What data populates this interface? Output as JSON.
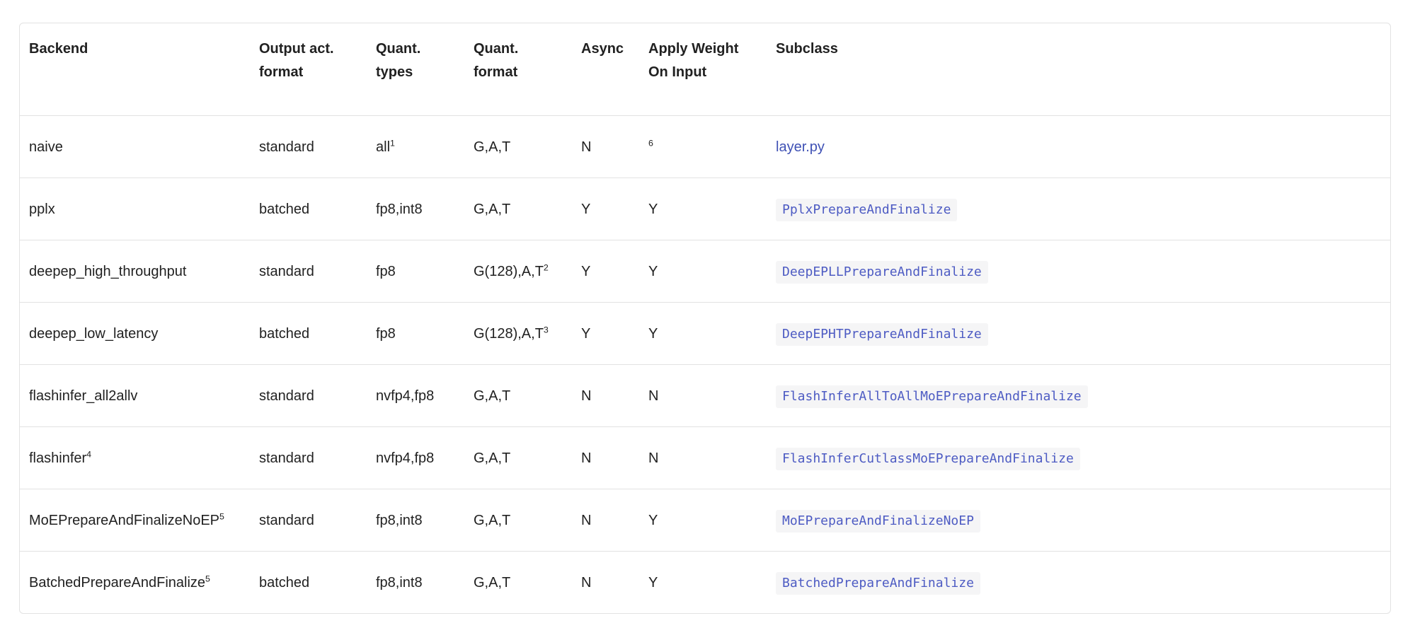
{
  "colors": {
    "link": "#3f51b5",
    "code_text": "#4d5bc3",
    "code_bg": "#f5f5f6",
    "border": "#e2e2e2",
    "text": "#212121"
  },
  "table": {
    "columns": [
      {
        "key": "backend",
        "label": "Backend"
      },
      {
        "key": "output-act-format",
        "label": "Output act. format"
      },
      {
        "key": "quant-types",
        "label": "Quant. types"
      },
      {
        "key": "quant-format",
        "label": "Quant. format"
      },
      {
        "key": "async",
        "label": "Async"
      },
      {
        "key": "apply-weight-on-input",
        "label": "Apply Weight On Input"
      },
      {
        "key": "subclass",
        "label": "Subclass"
      }
    ],
    "rows": [
      {
        "cells": [
          {
            "text": "naive"
          },
          {
            "text": "standard"
          },
          {
            "text": "all",
            "sup": "1"
          },
          {
            "text": "G,A,T"
          },
          {
            "text": "N"
          },
          {
            "text": "",
            "sup": "6"
          },
          {
            "text": "layer.py",
            "kind": "link"
          }
        ]
      },
      {
        "cells": [
          {
            "text": "pplx"
          },
          {
            "text": "batched"
          },
          {
            "text": "fp8,int8"
          },
          {
            "text": "G,A,T"
          },
          {
            "text": "Y"
          },
          {
            "text": "Y"
          },
          {
            "text": "PplxPrepareAndFinalize",
            "kind": "code"
          }
        ]
      },
      {
        "cells": [
          {
            "text": "deepep_high_throughput"
          },
          {
            "text": "standard"
          },
          {
            "text": "fp8"
          },
          {
            "text": "G(128),A,T",
            "sup": "2"
          },
          {
            "text": "Y"
          },
          {
            "text": "Y"
          },
          {
            "text": "DeepEPLLPrepareAndFinalize",
            "kind": "code"
          }
        ]
      },
      {
        "cells": [
          {
            "text": "deepep_low_latency"
          },
          {
            "text": "batched"
          },
          {
            "text": "fp8"
          },
          {
            "text": "G(128),A,T",
            "sup": "3"
          },
          {
            "text": "Y"
          },
          {
            "text": "Y"
          },
          {
            "text": "DeepEPHTPrepareAndFinalize",
            "kind": "code"
          }
        ]
      },
      {
        "cells": [
          {
            "text": "flashinfer_all2allv"
          },
          {
            "text": "standard"
          },
          {
            "text": "nvfp4,fp8"
          },
          {
            "text": "G,A,T"
          },
          {
            "text": "N"
          },
          {
            "text": "N"
          },
          {
            "text": "FlashInferAllToAllMoEPrepareAndFinalize",
            "kind": "code"
          }
        ]
      },
      {
        "cells": [
          {
            "text": "flashinfer",
            "sup": "4"
          },
          {
            "text": "standard"
          },
          {
            "text": "nvfp4,fp8"
          },
          {
            "text": "G,A,T"
          },
          {
            "text": "N"
          },
          {
            "text": "N"
          },
          {
            "text": "FlashInferCutlassMoEPrepareAndFinalize",
            "kind": "code"
          }
        ]
      },
      {
        "cells": [
          {
            "text": "MoEPrepareAndFinalizeNoEP",
            "sup": "5"
          },
          {
            "text": "standard"
          },
          {
            "text": "fp8,int8"
          },
          {
            "text": "G,A,T"
          },
          {
            "text": "N"
          },
          {
            "text": "Y"
          },
          {
            "text": "MoEPrepareAndFinalizeNoEP",
            "kind": "code"
          }
        ]
      },
      {
        "cells": [
          {
            "text": "BatchedPrepareAndFinalize",
            "sup": "5"
          },
          {
            "text": "batched"
          },
          {
            "text": "fp8,int8"
          },
          {
            "text": "G,A,T"
          },
          {
            "text": "N"
          },
          {
            "text": "Y"
          },
          {
            "text": "BatchedPrepareAndFinalize",
            "kind": "code"
          }
        ]
      }
    ]
  }
}
